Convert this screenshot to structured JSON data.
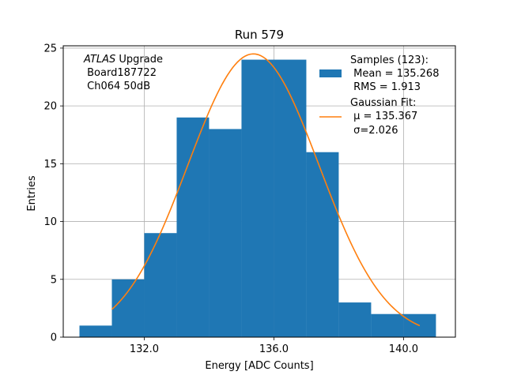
{
  "chart_data": {
    "type": "bar",
    "title": "Run 579",
    "xlabel": "Energy [ADC Counts]",
    "ylabel": "Entries",
    "xlim": [
      129.5,
      141.6
    ],
    "ylim": [
      0,
      25.2
    ],
    "grid": true,
    "x_ticks": [
      132,
      136,
      140
    ],
    "x_tick_labels": [
      "132.0",
      "136.0",
      "140.0"
    ],
    "y_ticks": [
      0,
      5,
      10,
      15,
      20,
      25
    ],
    "y_tick_labels": [
      "0",
      "5",
      "10",
      "15",
      "20",
      "25"
    ],
    "bins": [
      {
        "x0": 130,
        "x1": 131,
        "count": 1
      },
      {
        "x0": 131,
        "x1": 132,
        "count": 5
      },
      {
        "x0": 132,
        "x1": 133,
        "count": 9
      },
      {
        "x0": 133,
        "x1": 134,
        "count": 19
      },
      {
        "x0": 134,
        "x1": 135,
        "count": 18
      },
      {
        "x0": 135,
        "x1": 136,
        "count": 24
      },
      {
        "x0": 136,
        "x1": 137,
        "count": 24
      },
      {
        "x0": 137,
        "x1": 138,
        "count": 16
      },
      {
        "x0": 138,
        "x1": 139,
        "count": 3
      },
      {
        "x0": 139,
        "x1": 140,
        "count": 2
      },
      {
        "x0": 140,
        "x1": 141,
        "count": 2
      }
    ],
    "fit": {
      "type": "gaussian",
      "mu": 135.367,
      "sigma": 2.026,
      "amplitude": 24.5,
      "x_range": [
        131,
        140.5
      ]
    },
    "colors": {
      "bars": "#1f77b4",
      "fit": "#ff7f0e",
      "grid": "#b0b0b0"
    },
    "annotation": {
      "line1_italic": "ATLAS",
      "line1_rest": " Upgrade",
      "line2": " Board187722",
      "line3": " Ch064 50dB"
    },
    "legend": {
      "position": "top-right",
      "entries": [
        {
          "series": "histogram",
          "lines": [
            "Samples (123):",
            " Mean = 135.268",
            " RMS = 1.913"
          ]
        },
        {
          "series": "fit",
          "lines": [
            "Gaussian Fit:",
            " μ = 135.367",
            " σ=2.026"
          ]
        }
      ]
    }
  }
}
